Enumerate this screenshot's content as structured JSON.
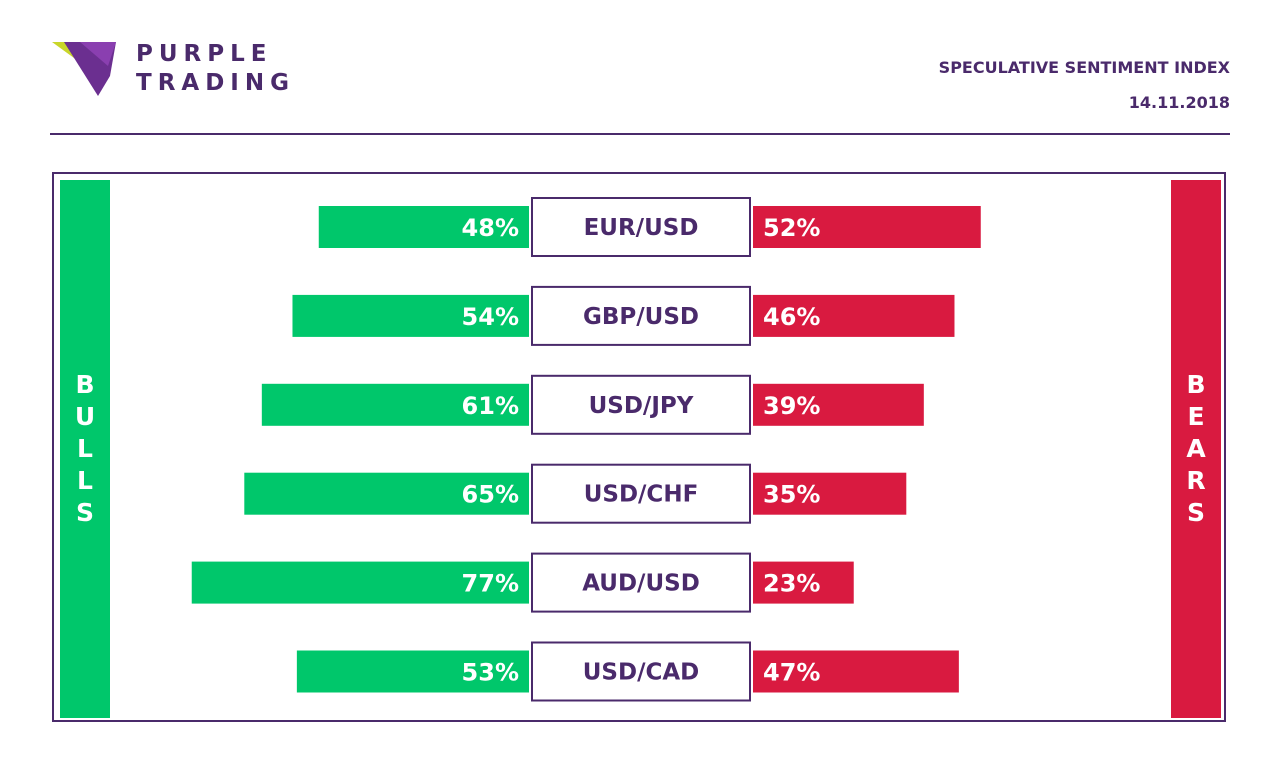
{
  "brand": {
    "line1": "PURPLE",
    "line2": "TRADING",
    "logo_icon": "purple-chevron-logo-icon",
    "color": "#4a2a6b"
  },
  "header": {
    "title": "SPECULATIVE SENTIMENT INDEX",
    "date": "14.11.2018"
  },
  "sides": {
    "bulls_label": "BULLS",
    "bears_label": "BEARS",
    "bulls_color": "#00c76b",
    "bears_color": "#d91a40"
  },
  "chart_data": {
    "type": "bar",
    "orientation": "horizontal-diverging",
    "categories": [
      "EUR/USD",
      "GBP/USD",
      "USD/JPY",
      "USD/CHF",
      "AUD/USD",
      "USD/CAD"
    ],
    "series": [
      {
        "name": "BULLS",
        "values": [
          48,
          54,
          61,
          65,
          77,
          53
        ],
        "labels": [
          "48%",
          "54%",
          "61%",
          "65%",
          "77%",
          "53%"
        ]
      },
      {
        "name": "BEARS",
        "values": [
          52,
          46,
          39,
          35,
          23,
          47
        ],
        "labels": [
          "52%",
          "46%",
          "39%",
          "35%",
          "23%",
          "47%"
        ]
      }
    ],
    "unit": "%"
  }
}
